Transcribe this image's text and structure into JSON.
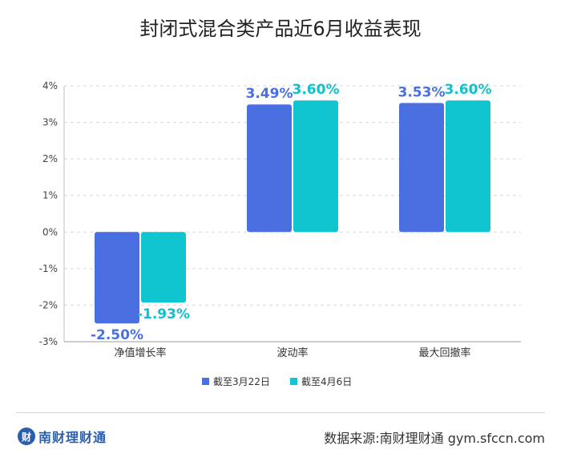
{
  "header": {
    "title": "封闭式混合类产品近6月收益表现"
  },
  "chart_data": {
    "type": "bar",
    "title": "封闭式混合类产品近6月收益表现",
    "categories": [
      "净值增长率",
      "波动率",
      "最大回撤率"
    ],
    "series": [
      {
        "name": "截至3月22日",
        "values": [
          -2.5,
          3.49,
          3.53
        ],
        "labels": [
          "-2.50%",
          "3.49%",
          "3.53%"
        ],
        "color": "#4a6fe0",
        "label_color": "#4a6fe0"
      },
      {
        "name": "截至4月6日",
        "values": [
          -1.93,
          3.6,
          3.6
        ],
        "labels": [
          "-1.93%",
          "3.60%",
          "3.60%"
        ],
        "color": "#10c5d0",
        "label_color": "#10c0cc"
      }
    ],
    "ylim": [
      -3,
      4
    ],
    "yticks": [
      4,
      3,
      2,
      1,
      0,
      -1,
      -2,
      -3
    ],
    "ytick_labels": [
      "4%",
      "3%",
      "2%",
      "1%",
      "0%",
      "-1%",
      "-2%",
      "-3%"
    ],
    "grid": true,
    "legend_position": "bottom-center"
  },
  "footer": {
    "logo_mark": "财",
    "logo_text": "南财理财通",
    "source": "数据来源:南财理财通  gym.sfccn.com"
  }
}
